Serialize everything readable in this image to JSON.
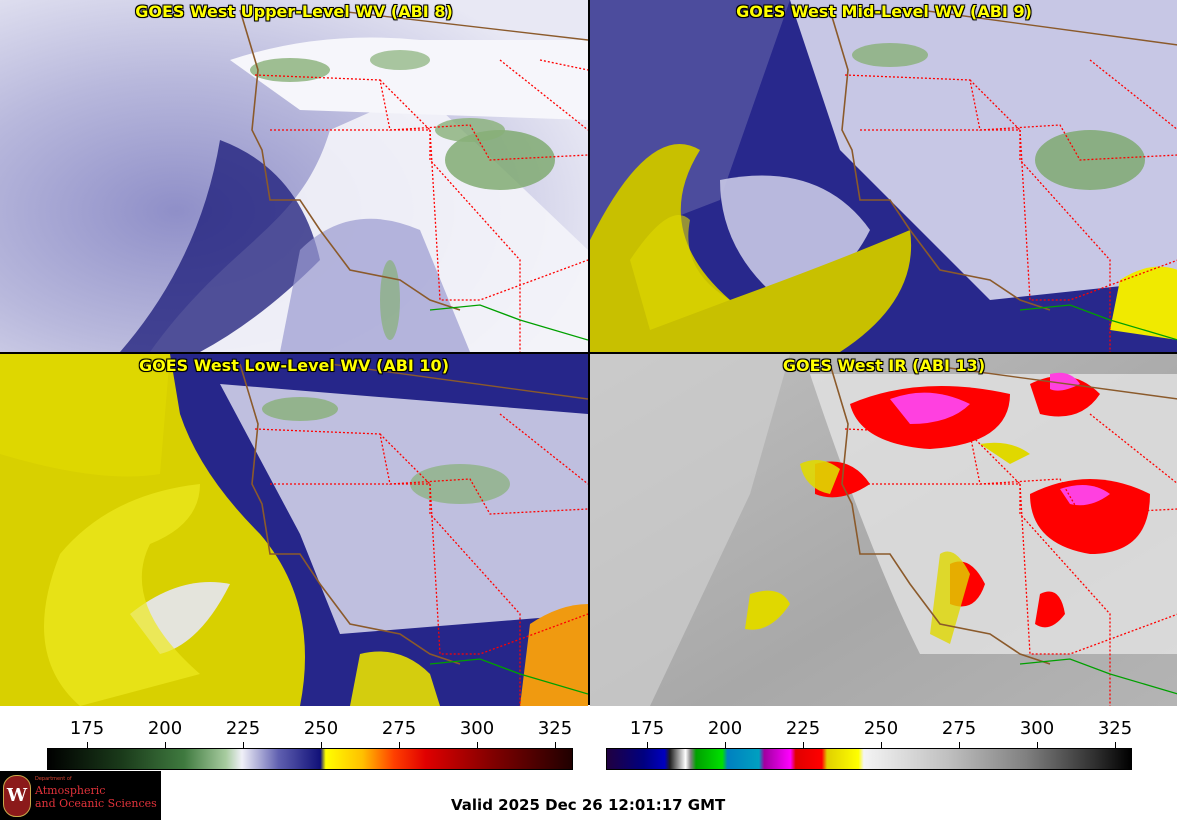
{
  "panels": [
    {
      "title": "GOES West Upper-Level WV (ABI 8)",
      "scheme": "wv"
    },
    {
      "title": "GOES West Mid-Level WV (ABI 9)",
      "scheme": "wv-mid"
    },
    {
      "title": "GOES West Low-Level WV (ABI 10)",
      "scheme": "wv-low"
    },
    {
      "title": "GOES West IR (ABI 13)",
      "scheme": "ir"
    }
  ],
  "colorbars": [
    {
      "ticks": [
        "175",
        "200",
        "225",
        "250",
        "275",
        "300",
        "325"
      ],
      "name": "wv-colorbar"
    },
    {
      "ticks": [
        "175",
        "200",
        "225",
        "250",
        "275",
        "300",
        "325"
      ],
      "name": "ir-colorbar"
    }
  ],
  "logo": {
    "small": "Department of",
    "line1": "Atmospheric",
    "line2": "and Oceanic Sciences",
    "seal": "W"
  },
  "valid_text": "Valid 2025 Dec 26 12:01:17 GMT",
  "colors": {
    "title": "#ffff00",
    "border_state": "#ff0000",
    "coast": "#8b5a2b",
    "mexico_border": "#00a000"
  }
}
